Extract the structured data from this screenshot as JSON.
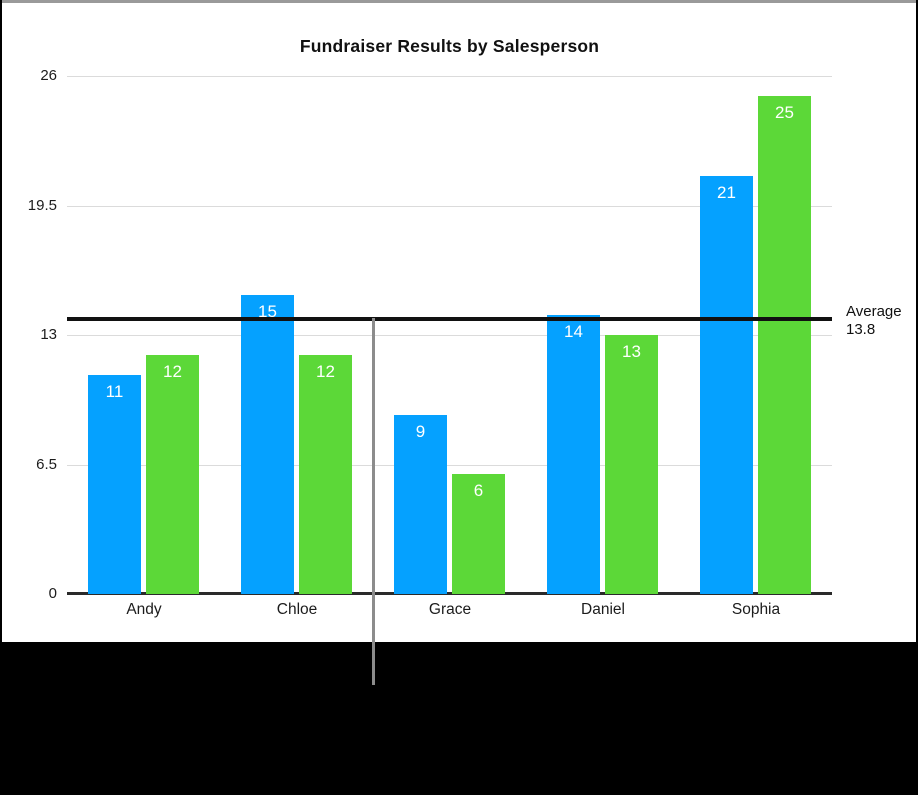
{
  "chart_data": {
    "type": "bar",
    "title": "Fundraiser Results by Salesperson",
    "categories": [
      "Andy",
      "Chloe",
      "Grace",
      "Daniel",
      "Sophia"
    ],
    "series": [
      {
        "name": "series-blue",
        "color": "#05A1FF",
        "values": [
          11,
          15,
          9,
          14,
          21
        ]
      },
      {
        "name": "series-green",
        "color": "#5CD838",
        "values": [
          12,
          12,
          6,
          13,
          25
        ]
      }
    ],
    "ylim": [
      0,
      26
    ],
    "yticks": [
      0,
      6.5,
      13,
      19.5,
      26
    ],
    "ytick_labels": [
      "0",
      "6.5",
      "13",
      "19.5",
      "26"
    ],
    "grid": true,
    "legend_position": "none",
    "value_labels_shown": true,
    "average_line": {
      "value": 13.8,
      "label_line1": "Average",
      "label_line2": "13.8"
    }
  },
  "colors": {
    "bar_blue": "#05A1FF",
    "bar_green": "#5CD838",
    "gridline": "#DBDBDB",
    "axis": "#2A2A2A",
    "average_line": "#111111",
    "guide_line": "#8C8C8C",
    "panel_background": "#FFFFFF",
    "outer_background": "#000000",
    "value_label_text": "#FFFFFF"
  }
}
